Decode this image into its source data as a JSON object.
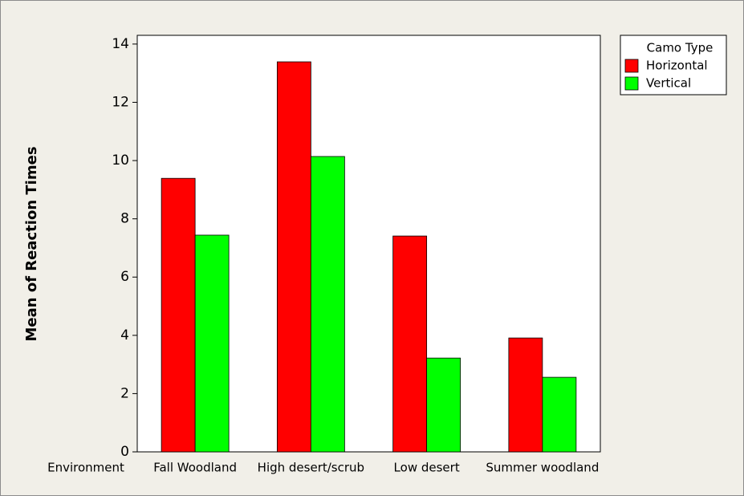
{
  "chart_data": {
    "type": "bar",
    "y_label": "Mean of Reaction Times",
    "x_label": "Environment",
    "categories": [
      "Fall Woodland",
      "High desert/scrub",
      "Low desert",
      "Summer woodland"
    ],
    "legend_title": "Camo Type",
    "series": [
      {
        "name": "Horizontal",
        "color": "#ff0000",
        "values": [
          9.39,
          13.39,
          7.41,
          3.91
        ]
      },
      {
        "name": "Vertical",
        "color": "#00ff00",
        "values": [
          7.44,
          10.14,
          3.22,
          2.56
        ]
      }
    ],
    "ylim": [
      0,
      14.3
    ],
    "yticks": [
      0,
      2,
      4,
      6,
      8,
      10,
      12,
      14
    ],
    "legend": "right"
  }
}
